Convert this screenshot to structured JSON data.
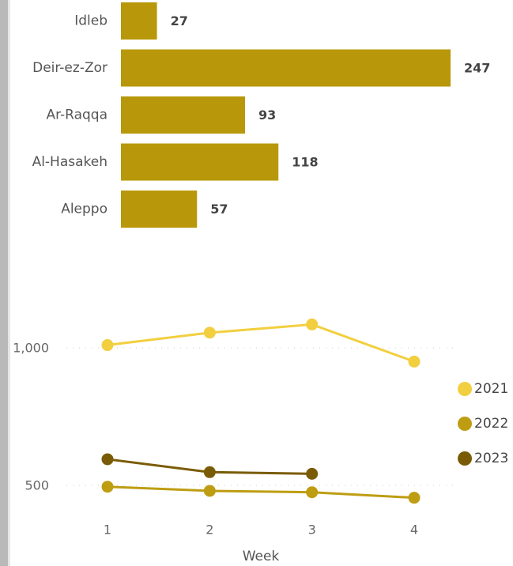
{
  "colors": {
    "bar": "#B8980A",
    "s2021": "#F2CF3F",
    "s2022": "#BE9D12",
    "s2023": "#7A5B05",
    "grid": "#cccccc",
    "background": "#ffffff"
  },
  "chart_data": [
    {
      "type": "bar",
      "orientation": "horizontal",
      "categories": [
        "Idleb",
        "Deir-ez-Zor",
        "Ar-Raqqa",
        "Al-Hasakeh",
        "Aleppo"
      ],
      "values": [
        27,
        247,
        93,
        118,
        57
      ],
      "data_labels": [
        "27",
        "247",
        "93",
        "118",
        "57"
      ],
      "xlim": [
        0,
        247
      ],
      "grid": false
    },
    {
      "type": "line",
      "x": [
        1,
        2,
        3,
        4
      ],
      "x_ticks": [
        "1",
        "2",
        "3",
        "4"
      ],
      "xlabel": "Week",
      "y_ticks": [
        500,
        1000
      ],
      "y_tick_labels": [
        "500",
        "1,000"
      ],
      "ylim": [
        430,
        1180
      ],
      "grid": true,
      "legend_position": "right",
      "series": [
        {
          "name": "2021",
          "values": [
            1010,
            1055,
            1085,
            950
          ]
        },
        {
          "name": "2022",
          "values": [
            495,
            480,
            475,
            455
          ]
        },
        {
          "name": "2023",
          "values": [
            595,
            548,
            542,
            null
          ]
        }
      ]
    }
  ]
}
